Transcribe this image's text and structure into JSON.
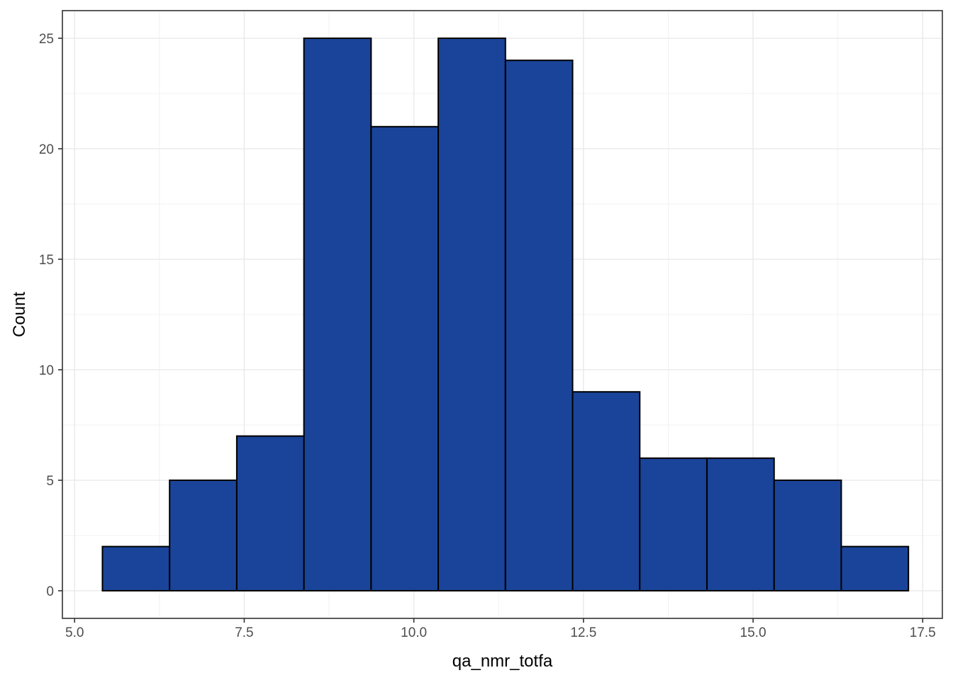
{
  "chart_data": {
    "type": "bar",
    "subtype": "histogram",
    "title": "",
    "xlabel": "qa_nmr_totfa",
    "ylabel": "Count",
    "xlim": [
      4.82,
      17.79
    ],
    "ylim": [
      -1.25,
      26.25
    ],
    "x_ticks": [
      5.0,
      7.5,
      10.0,
      12.5,
      15.0,
      17.5
    ],
    "x_tick_labels": [
      "5.0",
      "7.5",
      "10.0",
      "12.5",
      "15.0",
      "17.5"
    ],
    "y_ticks": [
      0,
      5,
      10,
      15,
      20,
      25
    ],
    "y_tick_labels": [
      "0",
      "5",
      "10",
      "15",
      "20",
      "25"
    ],
    "bins": [
      {
        "x0": 5.41,
        "x1": 6.4,
        "count": 2
      },
      {
        "x0": 6.4,
        "x1": 7.39,
        "count": 5
      },
      {
        "x0": 7.39,
        "x1": 8.38,
        "count": 7
      },
      {
        "x0": 8.38,
        "x1": 9.37,
        "count": 25
      },
      {
        "x0": 9.37,
        "x1": 10.36,
        "count": 21
      },
      {
        "x0": 10.36,
        "x1": 11.35,
        "count": 25
      },
      {
        "x0": 11.35,
        "x1": 12.34,
        "count": 24
      },
      {
        "x0": 12.34,
        "x1": 13.33,
        "count": 9
      },
      {
        "x0": 13.33,
        "x1": 14.32,
        "count": 6
      },
      {
        "x0": 14.32,
        "x1": 15.31,
        "count": 6
      },
      {
        "x0": 15.31,
        "x1": 16.3,
        "count": 5
      },
      {
        "x0": 16.3,
        "x1": 17.29,
        "count": 2
      }
    ],
    "grid": true,
    "legend": "none",
    "colors": {
      "bar_fill": "#1A4499",
      "bar_stroke": "#000000",
      "grid_major": "#EBEBEB",
      "grid_minor": "#F2F2F2",
      "panel_border": "#333333",
      "tick_text": "#4D4D4D",
      "axis_title": "#000000"
    }
  }
}
